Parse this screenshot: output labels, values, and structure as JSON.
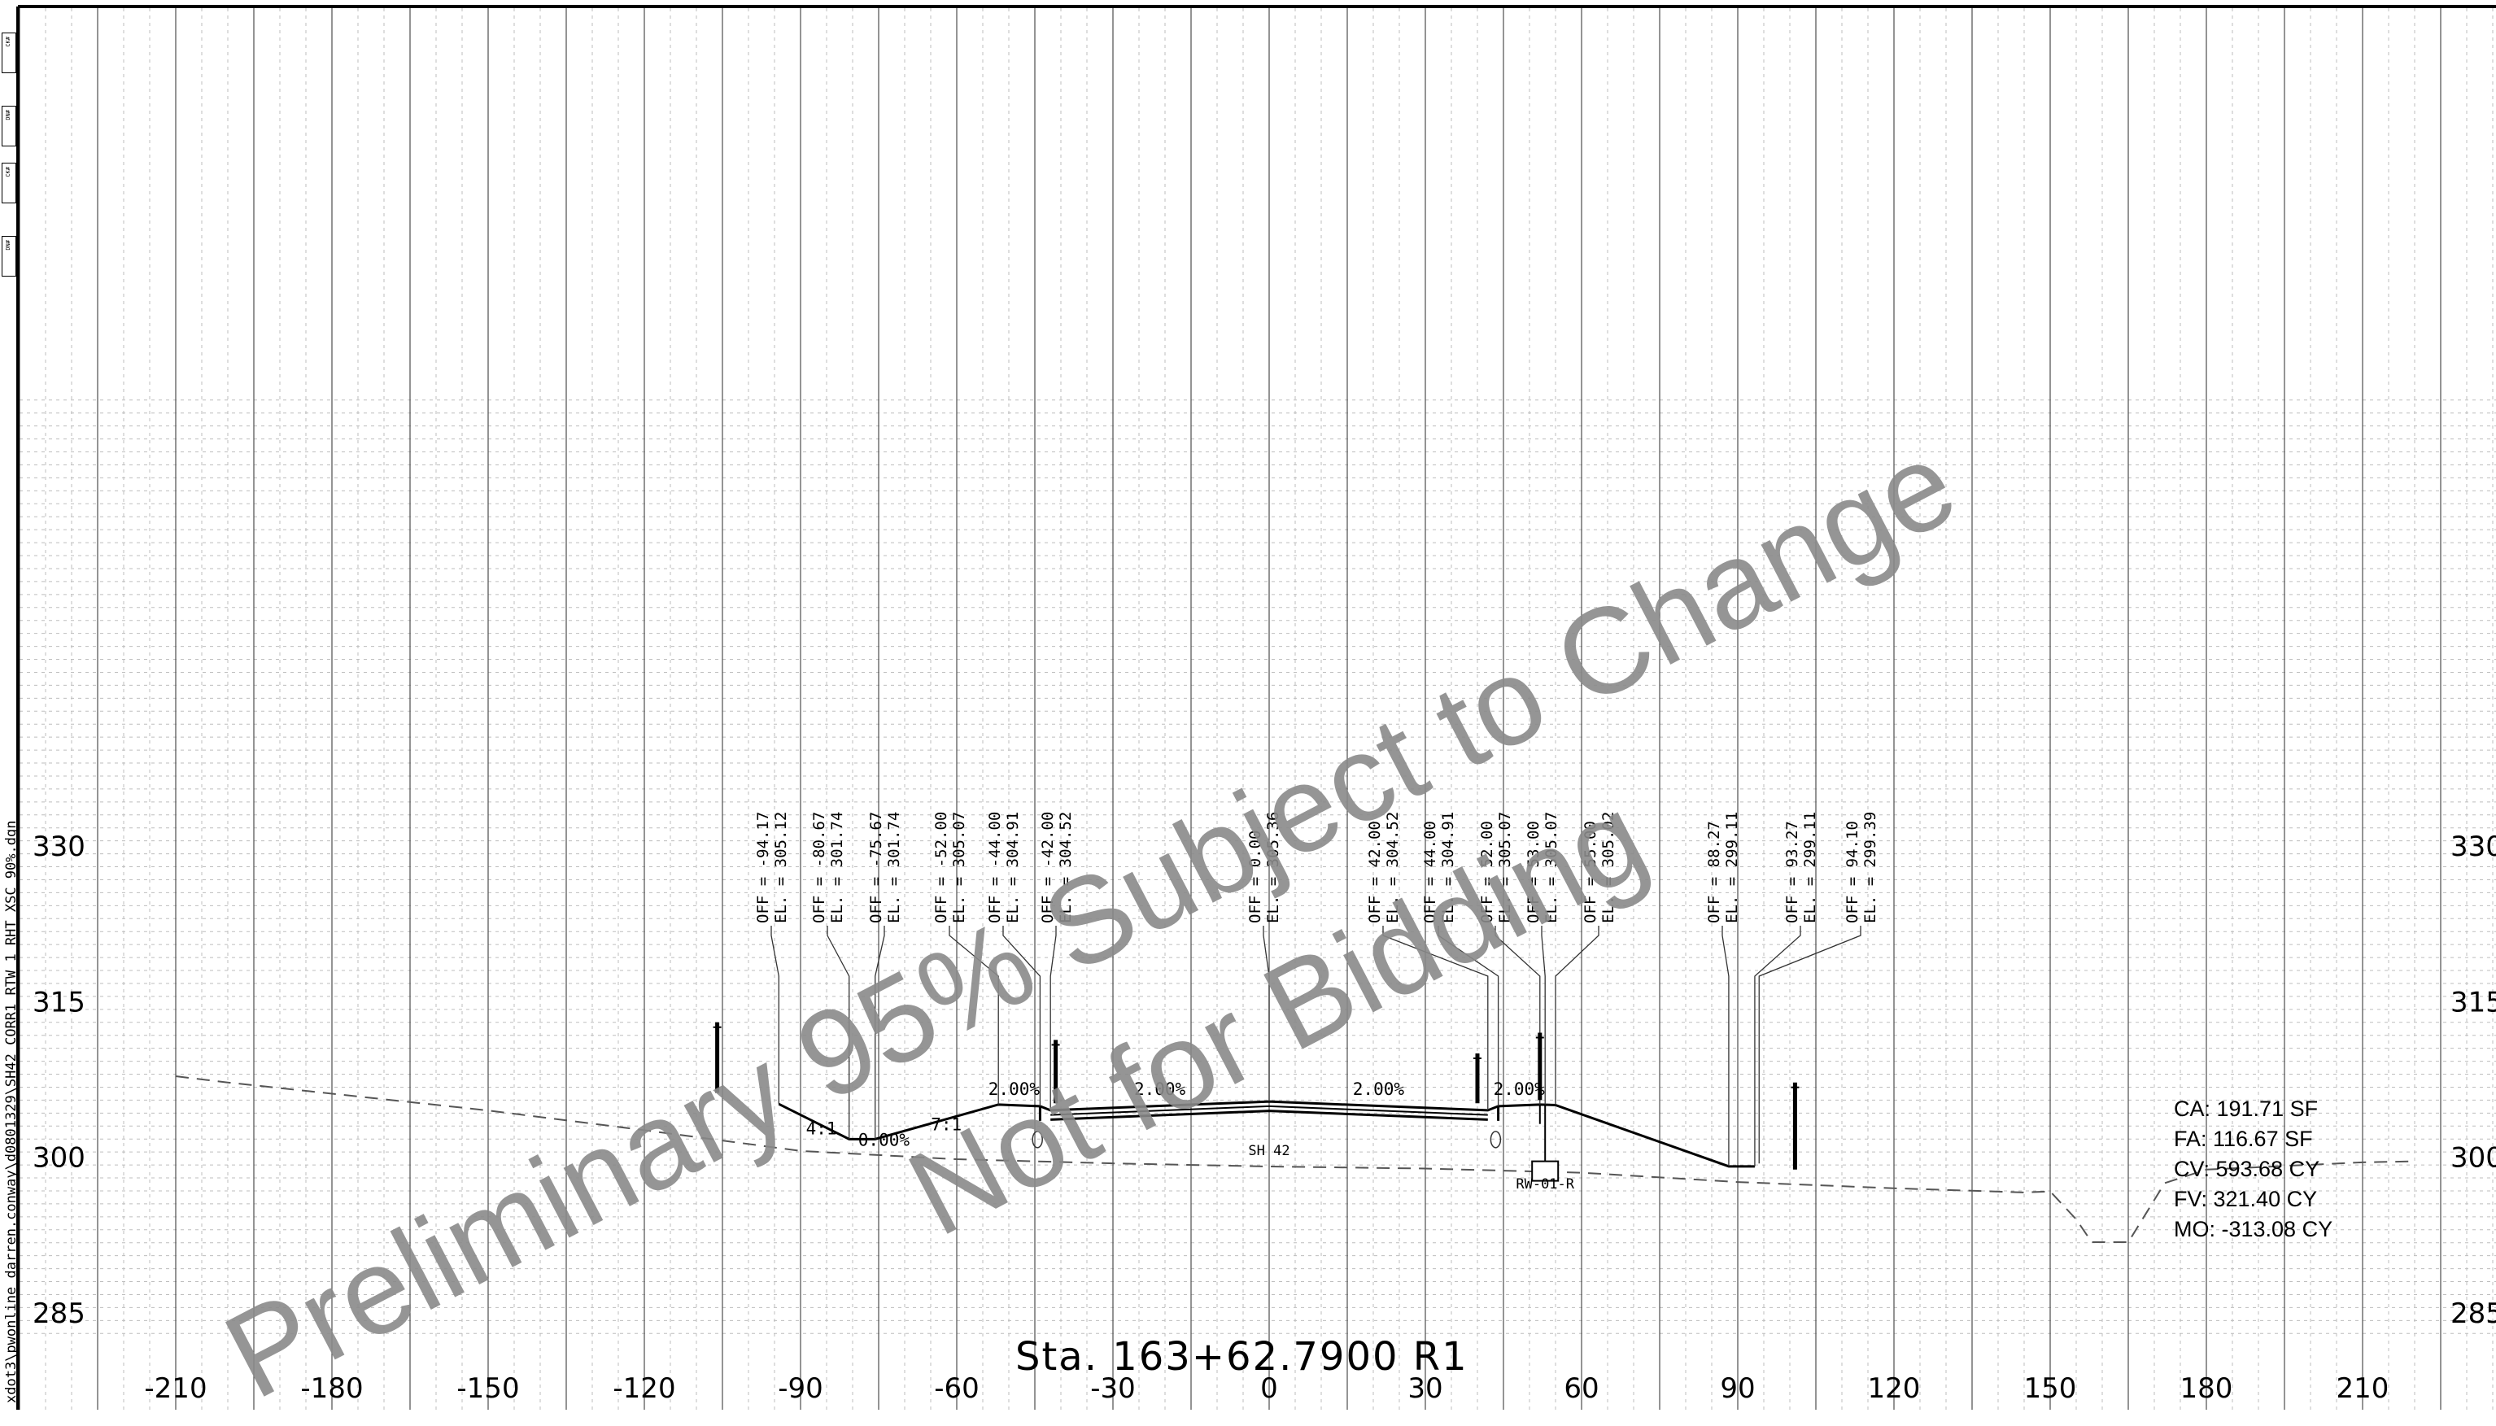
{
  "sheet": {
    "file_path": "xdot3\\pwonline_darren.conway\\d0801329\\SH42_CORR1_RTW_1_RHT_XSC_90%.dgn",
    "revision_boxes": [
      "CK#",
      "DN#",
      "CK#",
      "DN#"
    ],
    "station_label": "Sta. 163+62.7900 R1",
    "watermark_line1": "Preliminary 95% Subject to Change",
    "watermark_line2": "Not for Bidding"
  },
  "chart_data": {
    "type": "line",
    "x_ticks": [
      -210,
      -180,
      -150,
      -120,
      -90,
      -60,
      -30,
      0,
      30,
      60,
      90,
      120,
      150,
      180,
      210
    ],
    "x_tick_labels": [
      "-210",
      "-180",
      "-150",
      "-120",
      "-90",
      "-60",
      "-30",
      "0",
      "30",
      "60",
      "90",
      "120",
      "150",
      "180",
      "210"
    ],
    "y_ticks": [
      285,
      300,
      315,
      330
    ],
    "y_tick_labels": [
      "285",
      "300",
      "315",
      "330"
    ],
    "xlim": [
      -240,
      240
    ],
    "ylim": [
      283,
      373
    ],
    "grid": true,
    "series": [
      {
        "kind": "existing-ground",
        "points": [
          [
            -210,
            307.8
          ],
          [
            -200,
            307.2
          ],
          [
            -150,
            304.5
          ],
          [
            -120,
            302.6
          ],
          [
            -90,
            300.6
          ],
          [
            -60,
            299.8
          ],
          [
            -30,
            299.4
          ],
          [
            0,
            299.1
          ],
          [
            30,
            298.9
          ],
          [
            60,
            298.5
          ],
          [
            90,
            297.6
          ],
          [
            120,
            297.0
          ],
          [
            145,
            296.6
          ],
          [
            150,
            296.7
          ],
          [
            155,
            294.0
          ],
          [
            158,
            291.8
          ],
          [
            165,
            291.8
          ],
          [
            172,
            297.5
          ],
          [
            180,
            298.8
          ],
          [
            210,
            299.5
          ],
          [
            220,
            299.6
          ]
        ]
      },
      {
        "kind": "proposed-section",
        "points": [
          [
            -94.17,
            305.12
          ],
          [
            -80.67,
            301.74
          ],
          [
            -75.67,
            301.74
          ],
          [
            -52.0,
            305.07
          ],
          [
            -44.0,
            304.91
          ],
          [
            -42.0,
            304.52
          ],
          [
            0.0,
            305.36
          ],
          [
            42.0,
            304.52
          ],
          [
            44.0,
            304.91
          ],
          [
            52.0,
            305.07
          ],
          [
            55.0,
            305.02
          ],
          [
            88.27,
            299.11
          ],
          [
            93.27,
            299.11
          ]
        ]
      }
    ],
    "slope_labels": [
      "4:1",
      "0.00%",
      "7:1",
      "2.00%",
      "2.00%",
      "2.00%",
      "2.00%"
    ],
    "callouts": [
      {
        "off": "OFF = -94.17",
        "el": "EL. = 305.12"
      },
      {
        "off": "OFF = -80.67",
        "el": "EL. = 301.74"
      },
      {
        "off": "OFF = -75.67",
        "el": "EL. = 301.74"
      },
      {
        "off": "OFF = -52.00",
        "el": "EL. = 305.07"
      },
      {
        "off": "OFF = -44.00",
        "el": "EL. = 304.91"
      },
      {
        "off": "OFF = -42.00",
        "el": "EL. = 304.52"
      },
      {
        "off": "OFF = 0.00",
        "el": "EL. = 305.36"
      },
      {
        "off": "OFF = 42.00",
        "el": "EL. = 304.52"
      },
      {
        "off": "OFF = 44.00",
        "el": "EL. = 304.91"
      },
      {
        "off": "OFF = 52.00",
        "el": "EL. = 305.07"
      },
      {
        "off": "OFF = 53.00",
        "el": "EL. = 305.07"
      },
      {
        "off": "OFF = 55.00",
        "el": "EL. = 305.02"
      },
      {
        "off": "OFF = 88.27",
        "el": "EL. = 299.11"
      },
      {
        "off": "OFF = 93.27",
        "el": "EL. = 299.11"
      },
      {
        "off": "OFF = 94.10",
        "el": "EL. = 299.39"
      }
    ],
    "roadway_label": "SH 42",
    "wall_label": "RW-01-R"
  },
  "quantities": [
    "CA: 191.71 SF",
    "FA: 116.67 SF",
    "CV: 593.68 CY",
    "FV: 321.40 CY",
    "MO: -313.08 CY"
  ]
}
